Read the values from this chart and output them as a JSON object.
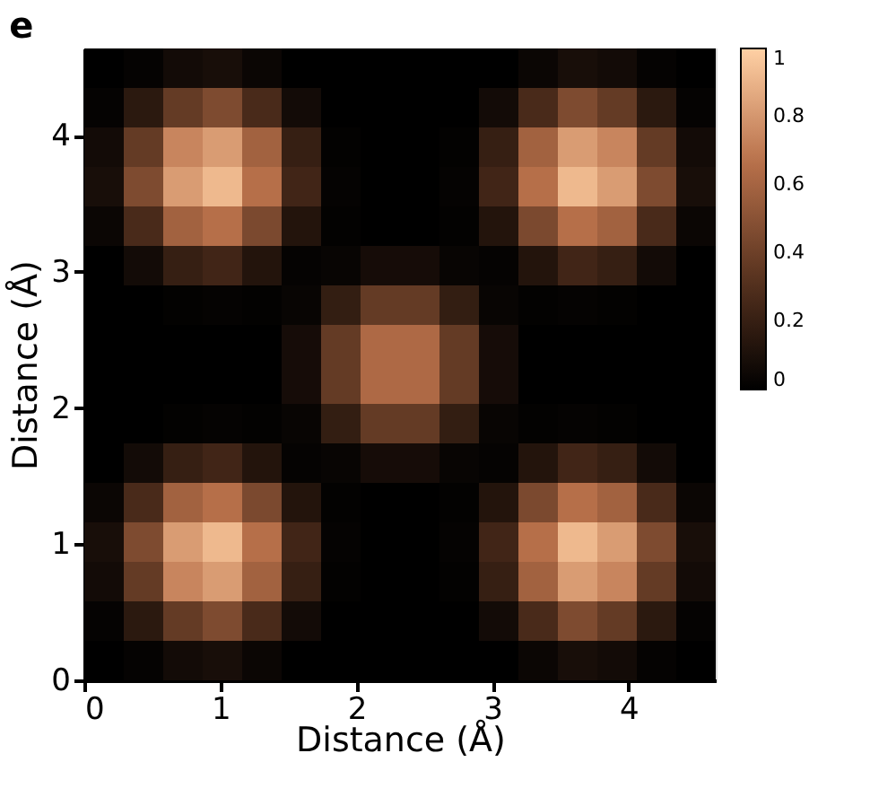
{
  "chart_data": {
    "type": "heatmap",
    "title": "e",
    "xlabel": "Distance (Å)",
    "ylabel": "Distance (Å)",
    "xlim": [
      0,
      4.64
    ],
    "ylim": [
      0,
      4.64
    ],
    "xticks": [
      0,
      1,
      2,
      3,
      4
    ],
    "yticks": [
      0,
      1,
      2,
      3,
      4
    ],
    "clim": [
      0,
      1
    ],
    "cticks": [
      0,
      0.2,
      0.4,
      0.6,
      0.8,
      1
    ],
    "colors": [
      "#000000",
      "#5a3420",
      "#b8704a",
      "#ffd0a4"
    ],
    "cells": [
      [
        0,
        0.02,
        0.07,
        0.09,
        0.04,
        0,
        0,
        0,
        0,
        0,
        0,
        0.04,
        0.09,
        0.07,
        0.02,
        0
      ],
      [
        0.02,
        0.16,
        0.37,
        0.46,
        0.27,
        0.07,
        0,
        0,
        0,
        0,
        0.07,
        0.27,
        0.46,
        0.37,
        0.16,
        0.02
      ],
      [
        0.07,
        0.37,
        0.74,
        0.82,
        0.59,
        0.2,
        0.01,
        0,
        0,
        0.01,
        0.2,
        0.59,
        0.82,
        0.74,
        0.37,
        0.07
      ],
      [
        0.09,
        0.46,
        0.82,
        0.92,
        0.66,
        0.24,
        0.02,
        0,
        0,
        0.02,
        0.24,
        0.66,
        0.92,
        0.82,
        0.46,
        0.09
      ],
      [
        0.04,
        0.27,
        0.59,
        0.66,
        0.45,
        0.13,
        0.01,
        0,
        0,
        0.01,
        0.13,
        0.45,
        0.66,
        0.59,
        0.27,
        0.04
      ],
      [
        0,
        0.07,
        0.2,
        0.24,
        0.13,
        0.02,
        0.03,
        0.08,
        0.08,
        0.03,
        0.02,
        0.13,
        0.24,
        0.2,
        0.07,
        0
      ],
      [
        0,
        0,
        0.01,
        0.02,
        0.01,
        0.03,
        0.19,
        0.37,
        0.37,
        0.19,
        0.03,
        0.01,
        0.02,
        0.01,
        0,
        0
      ],
      [
        0,
        0,
        0,
        0,
        0,
        0.08,
        0.37,
        0.63,
        0.63,
        0.37,
        0.08,
        0,
        0,
        0,
        0,
        0
      ],
      [
        0,
        0,
        0,
        0,
        0,
        0.08,
        0.37,
        0.63,
        0.63,
        0.37,
        0.08,
        0,
        0,
        0,
        0,
        0
      ],
      [
        0,
        0,
        0.01,
        0.02,
        0.01,
        0.03,
        0.19,
        0.37,
        0.37,
        0.19,
        0.03,
        0.01,
        0.02,
        0.01,
        0,
        0
      ],
      [
        0,
        0.07,
        0.2,
        0.24,
        0.13,
        0.02,
        0.03,
        0.08,
        0.08,
        0.03,
        0.02,
        0.13,
        0.24,
        0.2,
        0.07,
        0
      ],
      [
        0.04,
        0.27,
        0.59,
        0.66,
        0.45,
        0.13,
        0.01,
        0,
        0,
        0.01,
        0.13,
        0.45,
        0.66,
        0.59,
        0.27,
        0.04
      ],
      [
        0.09,
        0.46,
        0.82,
        0.92,
        0.66,
        0.24,
        0.02,
        0,
        0,
        0.02,
        0.24,
        0.66,
        0.92,
        0.82,
        0.46,
        0.09
      ],
      [
        0.07,
        0.37,
        0.74,
        0.82,
        0.59,
        0.2,
        0.01,
        0,
        0,
        0.01,
        0.2,
        0.59,
        0.82,
        0.74,
        0.37,
        0.07
      ],
      [
        0.02,
        0.16,
        0.37,
        0.46,
        0.27,
        0.07,
        0,
        0,
        0,
        0,
        0.07,
        0.27,
        0.46,
        0.37,
        0.16,
        0.02
      ],
      [
        0,
        0.02,
        0.07,
        0.09,
        0.04,
        0,
        0,
        0,
        0,
        0,
        0,
        0.04,
        0.09,
        0.07,
        0.02,
        0
      ]
    ]
  }
}
